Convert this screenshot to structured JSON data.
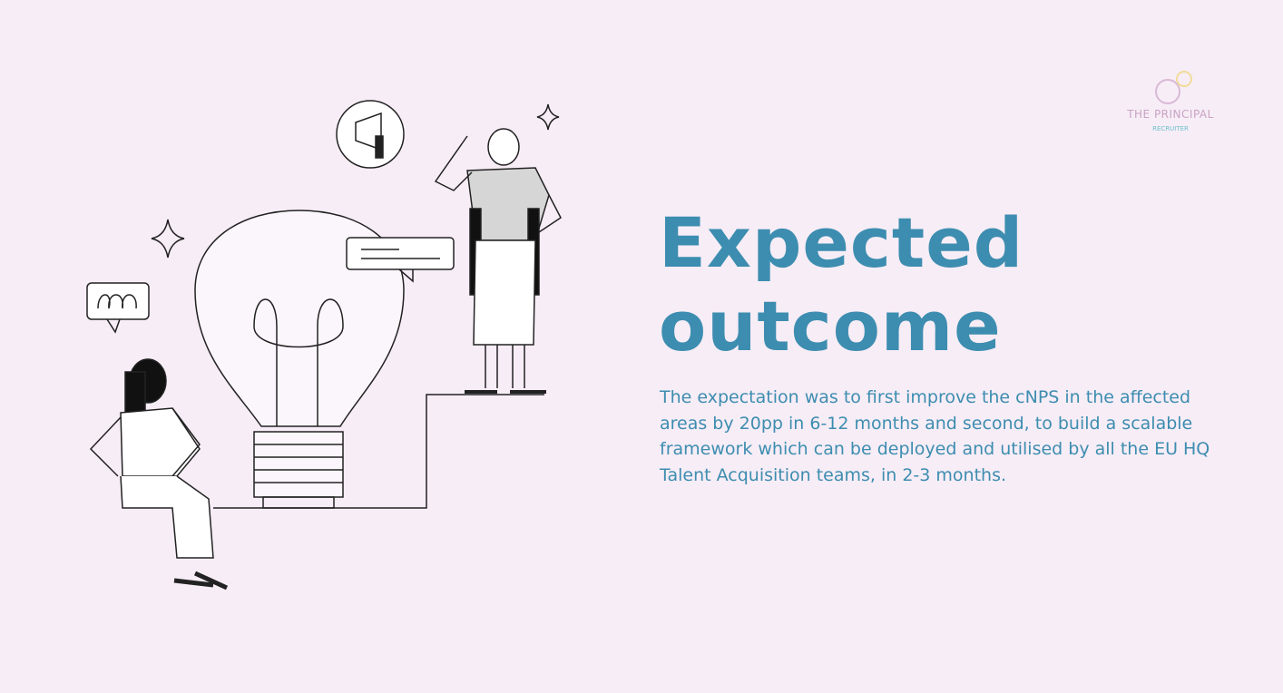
{
  "logo": {
    "title": "THE PRINCIPAL",
    "subtitle": "RECRUITER",
    "colors": [
      "#d9b9d6",
      "#f1dc9a"
    ]
  },
  "heading": {
    "line1": "Expected",
    "line2": "outcome"
  },
  "body": "The expectation was to first improve the cNPS in the affected areas by 20pp in 6-12 months and second, to build a scalable framework which can be deployed and utilised by all the EU HQ Talent Acquisition teams, in 2-3 months.",
  "colors": {
    "background": "#f7edf6",
    "accent": "#3d8db0"
  }
}
